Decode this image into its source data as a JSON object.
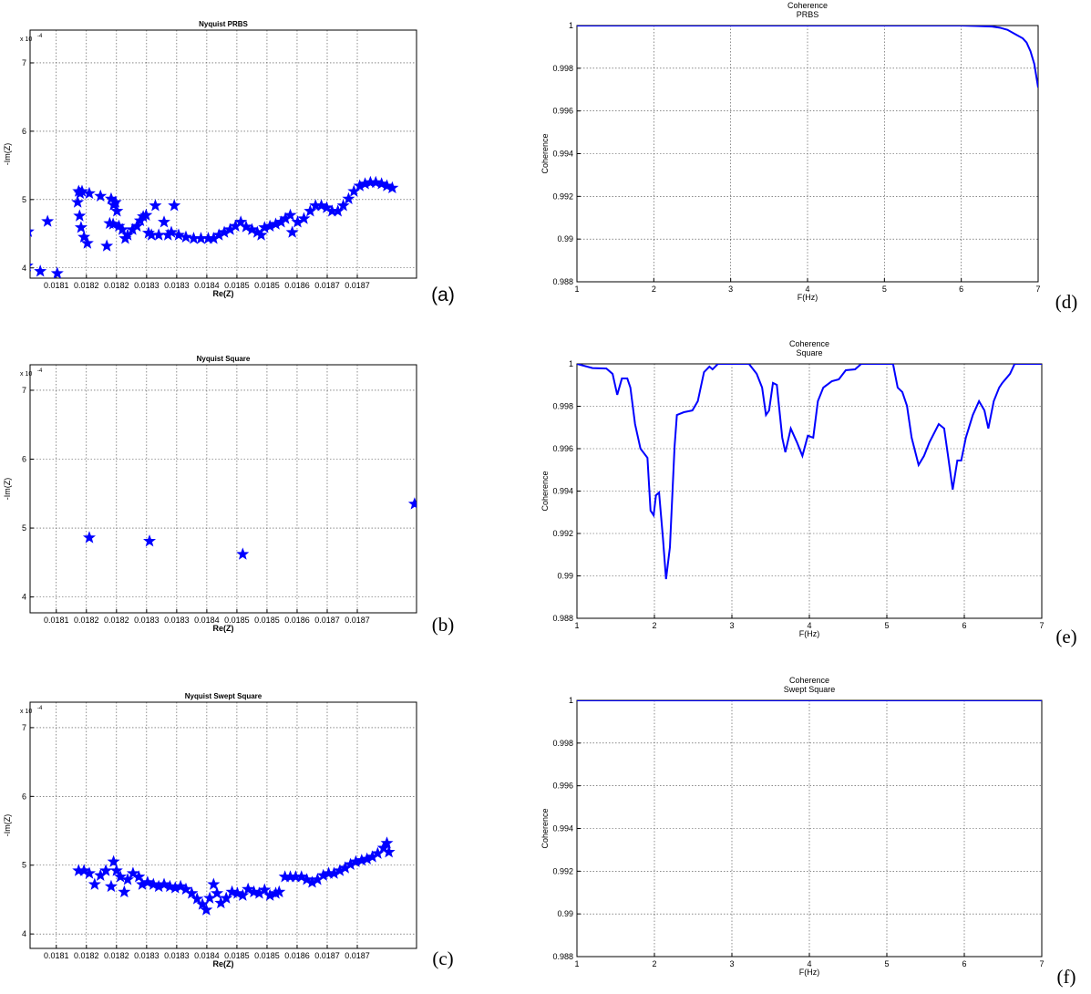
{
  "chart_data": [
    {
      "type": "scatter",
      "title": "Nyquist PRBS",
      "xlabel": "Re(Z)",
      "ylabel": "-Im(Z)",
      "y_scale_label": "x 10",
      "y_scale_exponent": "-4",
      "panel_label": "(a)",
      "color": "#0000ff",
      "grid": true,
      "xlim": [
        0.018046,
        0.018842
      ],
      "ylim": [
        3.85,
        7.48
      ],
      "xticks": [
        {
          "value": 0.0181,
          "label": "0.0181"
        },
        {
          "value": 0.018162,
          "label": "0.0182"
        },
        {
          "value": 0.018224,
          "label": "0.0182"
        },
        {
          "value": 0.018286,
          "label": "0.0183"
        },
        {
          "value": 0.018348,
          "label": "0.0183"
        },
        {
          "value": 0.01841,
          "label": "0.0184"
        },
        {
          "value": 0.018472,
          "label": "0.0185"
        },
        {
          "value": 0.018534,
          "label": "0.0185"
        },
        {
          "value": 0.018596,
          "label": "0.0186"
        },
        {
          "value": 0.018658,
          "label": "0.0187"
        },
        {
          "value": 0.01872,
          "label": "0.0187"
        }
      ],
      "yticks": [
        4,
        5,
        6,
        7
      ],
      "x": [
        0.01804,
        0.018042,
        0.018067,
        0.018082,
        0.018102,
        0.018146,
        0.018149,
        0.018153,
        0.018144,
        0.018148,
        0.018151,
        0.018157,
        0.018164,
        0.018168,
        0.018191,
        0.018204,
        0.018213,
        0.018218,
        0.018222,
        0.018225,
        0.01821,
        0.018217,
        0.018229,
        0.018236,
        0.018242,
        0.018247,
        0.018257,
        0.018266,
        0.018273,
        0.018279,
        0.018285,
        0.01829,
        0.018296,
        0.018304,
        0.018311,
        0.018322,
        0.01833,
        0.018337,
        0.018343,
        0.018352,
        0.018367,
        0.018383,
        0.018398,
        0.018413,
        0.018424,
        0.018435,
        0.018446,
        0.018458,
        0.018469,
        0.01848,
        0.018491,
        0.018503,
        0.018514,
        0.018522,
        0.018529,
        0.01854,
        0.018552,
        0.018563,
        0.018572,
        0.018582,
        0.018586,
        0.018597,
        0.01861,
        0.018623,
        0.018634,
        0.018646,
        0.018657,
        0.018668,
        0.01868,
        0.018691,
        0.018702,
        0.018713,
        0.018725,
        0.018736,
        0.018747,
        0.018758,
        0.01877,
        0.018781,
        0.018792
      ],
      "values": [
        4.03,
        4.53,
        3.95,
        4.68,
        3.92,
        5.12,
        5.09,
        5.12,
        4.96,
        4.76,
        4.59,
        4.45,
        4.36,
        5.09,
        5.05,
        4.32,
        5.01,
        4.92,
        4.96,
        4.83,
        4.65,
        4.64,
        4.61,
        4.56,
        4.43,
        4.48,
        4.56,
        4.61,
        4.69,
        4.75,
        4.77,
        4.51,
        4.48,
        4.91,
        4.48,
        4.67,
        4.48,
        4.52,
        4.91,
        4.48,
        4.45,
        4.43,
        4.43,
        4.43,
        4.43,
        4.48,
        4.52,
        4.56,
        4.61,
        4.67,
        4.6,
        4.56,
        4.52,
        4.48,
        4.59,
        4.61,
        4.64,
        4.67,
        4.72,
        4.77,
        4.52,
        4.67,
        4.72,
        4.83,
        4.91,
        4.91,
        4.88,
        4.83,
        4.83,
        4.91,
        5.01,
        5.12,
        5.2,
        5.23,
        5.25,
        5.25,
        5.23,
        5.2,
        5.17
      ]
    },
    {
      "type": "scatter",
      "title": "Nyquist Square",
      "xlabel": "Re(Z)",
      "ylabel": "-Im(Z)",
      "y_scale_label": "x 10",
      "y_scale_exponent": "-4",
      "panel_label": "(b)",
      "color": "#0000ff",
      "grid": true,
      "xlim": [
        0.018046,
        0.018842
      ],
      "ylim": [
        3.77,
        7.37
      ],
      "xticks": [
        {
          "value": 0.0181,
          "label": "0.0181"
        },
        {
          "value": 0.018162,
          "label": "0.0182"
        },
        {
          "value": 0.018224,
          "label": "0.0182"
        },
        {
          "value": 0.018286,
          "label": "0.0183"
        },
        {
          "value": 0.018348,
          "label": "0.0183"
        },
        {
          "value": 0.01841,
          "label": "0.0184"
        },
        {
          "value": 0.018472,
          "label": "0.0185"
        },
        {
          "value": 0.018534,
          "label": "0.0185"
        },
        {
          "value": 0.018596,
          "label": "0.0186"
        },
        {
          "value": 0.018658,
          "label": "0.0187"
        },
        {
          "value": 0.01872,
          "label": "0.0187"
        }
      ],
      "yticks": [
        4,
        5,
        6,
        7
      ],
      "x": [
        0.018168,
        0.018292,
        0.018484,
        0.018838
      ],
      "values": [
        4.86,
        4.81,
        4.62,
        5.35
      ]
    },
    {
      "type": "scatter",
      "title": "Nyquist Swept Square",
      "xlabel": "Re(Z)",
      "ylabel": "-Im(Z)",
      "y_scale_label": "x 10",
      "y_scale_exponent": "-4",
      "panel_label": "(c)",
      "color": "#0000ff",
      "grid": true,
      "xlim": [
        0.018046,
        0.018842
      ],
      "ylim": [
        3.79,
        7.37
      ],
      "xticks": [
        {
          "value": 0.0181,
          "label": "0.0181"
        },
        {
          "value": 0.018162,
          "label": "0.0182"
        },
        {
          "value": 0.018224,
          "label": "0.0182"
        },
        {
          "value": 0.018286,
          "label": "0.0183"
        },
        {
          "value": 0.018348,
          "label": "0.0183"
        },
        {
          "value": 0.01841,
          "label": "0.0184"
        },
        {
          "value": 0.018472,
          "label": "0.0185"
        },
        {
          "value": 0.018534,
          "label": "0.0185"
        },
        {
          "value": 0.018596,
          "label": "0.0186"
        },
        {
          "value": 0.018658,
          "label": "0.0187"
        },
        {
          "value": 0.01872,
          "label": "0.0187"
        }
      ],
      "yticks": [
        4,
        5,
        6,
        7
      ],
      "x": [
        0.018146,
        0.018157,
        0.018168,
        0.018179,
        0.018191,
        0.018202,
        0.018213,
        0.018218,
        0.018224,
        0.018232,
        0.01824,
        0.018247,
        0.018258,
        0.01827,
        0.018277,
        0.018288,
        0.0183,
        0.018311,
        0.018322,
        0.018334,
        0.018345,
        0.018356,
        0.018367,
        0.018379,
        0.01839,
        0.018401,
        0.018409,
        0.018416,
        0.018424,
        0.018431,
        0.018439,
        0.01845,
        0.018462,
        0.018473,
        0.018484,
        0.018495,
        0.018507,
        0.018518,
        0.018529,
        0.01854,
        0.018552,
        0.018559,
        0.018571,
        0.018582,
        0.018593,
        0.018605,
        0.018616,
        0.018627,
        0.018638,
        0.01865,
        0.018661,
        0.018672,
        0.018684,
        0.018695,
        0.018706,
        0.018717,
        0.018729,
        0.01874,
        0.018751,
        0.018762,
        0.018774,
        0.018781,
        0.018785
      ],
      "values": [
        4.92,
        4.92,
        4.88,
        4.72,
        4.85,
        4.92,
        4.69,
        5.05,
        4.92,
        4.83,
        4.61,
        4.79,
        4.88,
        4.83,
        4.72,
        4.75,
        4.72,
        4.69,
        4.72,
        4.69,
        4.67,
        4.69,
        4.65,
        4.59,
        4.51,
        4.43,
        4.35,
        4.52,
        4.72,
        4.59,
        4.45,
        4.52,
        4.61,
        4.59,
        4.56,
        4.65,
        4.61,
        4.59,
        4.64,
        4.56,
        4.59,
        4.61,
        4.83,
        4.83,
        4.83,
        4.83,
        4.79,
        4.75,
        4.79,
        4.85,
        4.88,
        4.88,
        4.92,
        4.96,
        5.01,
        5.05,
        5.07,
        5.09,
        5.12,
        5.17,
        5.25,
        5.32,
        5.19
      ]
    },
    {
      "type": "line",
      "title": [
        "Coherence",
        "PRBS"
      ],
      "xlabel": "F(Hz)",
      "ylabel": "Coherence",
      "panel_label": "(d)",
      "color": "#0000ff",
      "grid": true,
      "xlim": [
        1,
        7
      ],
      "ylim": [
        0.988,
        1
      ],
      "xticks": [
        1,
        2,
        3,
        4,
        5,
        6,
        7
      ],
      "yticks": [
        0.988,
        0.99,
        0.992,
        0.994,
        0.996,
        0.998,
        1
      ],
      "x": [
        1,
        1.5,
        2,
        2.5,
        3,
        3.5,
        4,
        4.5,
        5,
        5.5,
        6,
        6.2,
        6.4,
        6.5,
        6.6,
        6.7,
        6.8,
        6.85,
        6.9,
        6.95,
        7
      ],
      "values": [
        1,
        1,
        1,
        1,
        1,
        1,
        1,
        1,
        1,
        1,
        1,
        0.99998,
        0.99995,
        0.9999,
        0.9998,
        0.9996,
        0.9994,
        0.9992,
        0.9988,
        0.9982,
        0.9971
      ]
    },
    {
      "type": "line",
      "title": [
        "Coherence",
        "Square"
      ],
      "xlabel": "F(Hz)",
      "ylabel": "Coherence",
      "panel_label": "(e)",
      "color": "#0000ff",
      "grid": true,
      "xlim": [
        1,
        7
      ],
      "ylim": [
        0.988,
        1
      ],
      "xticks": [
        1,
        2,
        3,
        4,
        5,
        6,
        7
      ],
      "yticks": [
        0.988,
        0.99,
        0.992,
        0.994,
        0.996,
        0.998,
        1
      ],
      "x": [
        1,
        1.2,
        1.38,
        1.46,
        1.52,
        1.58,
        1.65,
        1.69,
        1.75,
        1.82,
        1.91,
        1.95,
        1.99,
        2.02,
        2.06,
        2.11,
        2.15,
        2.2,
        2.26,
        2.29,
        2.38,
        2.49,
        2.56,
        2.64,
        2.71,
        2.75,
        2.82,
        3.22,
        3.32,
        3.39,
        3.44,
        3.48,
        3.53,
        3.58,
        3.65,
        3.69,
        3.76,
        3.84,
        3.91,
        3.98,
        4.05,
        4.11,
        4.18,
        4.29,
        4.38,
        4.47,
        4.59,
        4.67,
        5.08,
        5.14,
        5.2,
        5.26,
        5.32,
        5.41,
        5.48,
        5.55,
        5.67,
        5.74,
        5.79,
        5.85,
        5.91,
        5.96,
        6.02,
        6.11,
        6.19,
        6.26,
        6.31,
        6.38,
        6.45,
        6.49,
        6.59,
        6.65,
        7
      ],
      "values": [
        1,
        0.9998,
        0.99978,
        0.99953,
        0.99854,
        0.99931,
        0.99931,
        0.99888,
        0.99716,
        0.996,
        0.99557,
        0.99308,
        0.99286,
        0.9938,
        0.99393,
        0.99178,
        0.98985,
        0.99135,
        0.99609,
        0.99759,
        0.99772,
        0.9978,
        0.99824,
        0.99961,
        0.99987,
        0.99974,
        1,
        1,
        0.99953,
        0.99888,
        0.99759,
        0.9978,
        0.9991,
        0.99901,
        0.99652,
        0.99583,
        0.99695,
        0.9963,
        0.99566,
        0.99661,
        0.99652,
        0.99824,
        0.99888,
        0.99918,
        0.99927,
        0.9997,
        0.99974,
        1,
        1,
        0.99888,
        0.99867,
        0.99802,
        0.99652,
        0.99523,
        0.99566,
        0.9963,
        0.99716,
        0.99695,
        0.99566,
        0.99407,
        0.99544,
        0.99544,
        0.99652,
        0.99759,
        0.99824,
        0.9978,
        0.99695,
        0.99824,
        0.99888,
        0.9991,
        0.99953,
        1,
        1
      ]
    },
    {
      "type": "line",
      "title": [
        "Coherence",
        "Swept Square"
      ],
      "xlabel": "F(Hz)",
      "ylabel": "Coherence",
      "panel_label": "(f)",
      "color": "#0000ff",
      "grid": true,
      "xlim": [
        1,
        7
      ],
      "ylim": [
        0.988,
        1
      ],
      "xticks": [
        1,
        2,
        3,
        4,
        5,
        6,
        7
      ],
      "yticks": [
        0.988,
        0.99,
        0.992,
        0.994,
        0.996,
        0.998,
        1
      ],
      "x": [
        1,
        2,
        3,
        4,
        5,
        6,
        7
      ],
      "values": [
        1,
        1,
        1,
        1,
        1,
        1,
        1
      ]
    }
  ]
}
